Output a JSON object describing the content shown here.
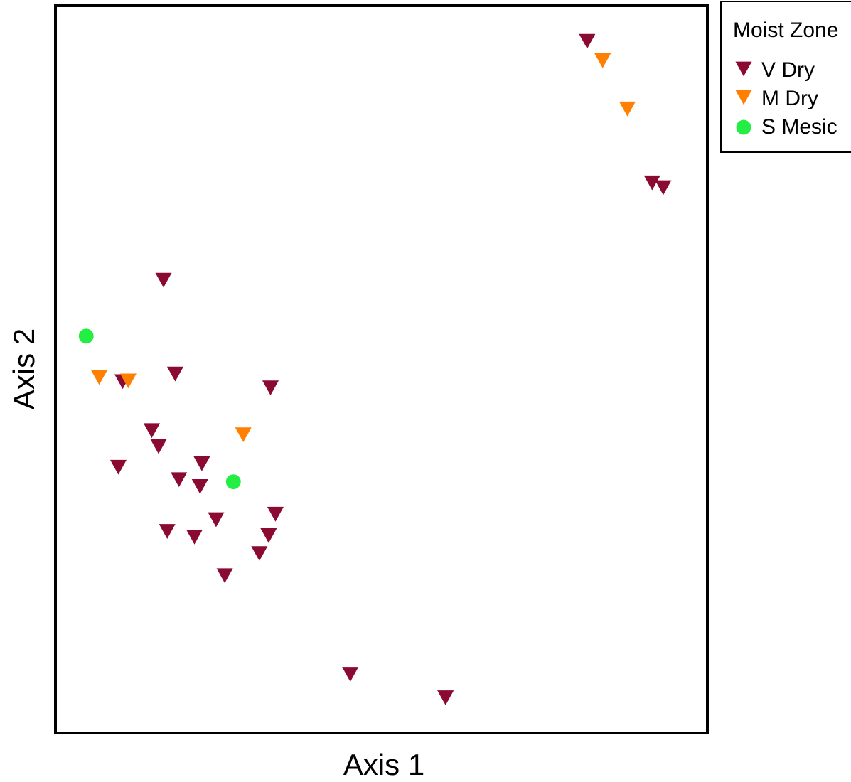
{
  "chart_data": {
    "type": "scatter",
    "title": "",
    "xlabel": "Axis 1",
    "ylabel": "Axis 2",
    "xlim": [
      0,
      100
    ],
    "ylim": [
      0,
      100
    ],
    "grid": false,
    "legend": {
      "title": "Moist Zone",
      "placement": "outside-top-right",
      "entries": [
        {
          "name": "V Dry",
          "marker": "triangle-down",
          "color": "#8B0A32"
        },
        {
          "name": "M Dry",
          "marker": "triangle-down",
          "color": "#FF8000"
        },
        {
          "name": "S Mesic",
          "marker": "circle",
          "color": "#22EE44"
        }
      ]
    },
    "series": [
      {
        "name": "V Dry",
        "marker": "triangle-down",
        "color": "#8B0A32",
        "points": [
          {
            "x": 83.9,
            "y": 97.1
          },
          {
            "x": 94.4,
            "y": 76.6
          },
          {
            "x": 96.2,
            "y": 75.9
          },
          {
            "x": 15.4,
            "y": 62.5
          },
          {
            "x": 17.3,
            "y": 48.9
          },
          {
            "x": 8.8,
            "y": 47.8
          },
          {
            "x": 32.7,
            "y": 46.9
          },
          {
            "x": 13.5,
            "y": 40.7
          },
          {
            "x": 14.6,
            "y": 38.4
          },
          {
            "x": 8.1,
            "y": 35.4
          },
          {
            "x": 21.6,
            "y": 35.9
          },
          {
            "x": 17.9,
            "y": 33.6
          },
          {
            "x": 21.3,
            "y": 32.6
          },
          {
            "x": 33.5,
            "y": 28.6
          },
          {
            "x": 23.9,
            "y": 27.8
          },
          {
            "x": 16.0,
            "y": 26.1
          },
          {
            "x": 20.4,
            "y": 25.3
          },
          {
            "x": 32.4,
            "y": 25.5
          },
          {
            "x": 30.9,
            "y": 22.9
          },
          {
            "x": 25.3,
            "y": 19.7
          },
          {
            "x": 45.6,
            "y": 5.4
          },
          {
            "x": 61.0,
            "y": 2.0
          }
        ]
      },
      {
        "name": "M Dry",
        "marker": "triangle-down",
        "color": "#FF8000",
        "points": [
          {
            "x": 86.4,
            "y": 94.3
          },
          {
            "x": 90.4,
            "y": 87.3
          },
          {
            "x": 5.0,
            "y": 48.4
          },
          {
            "x": 9.7,
            "y": 47.9
          },
          {
            "x": 28.3,
            "y": 40.1
          }
        ]
      },
      {
        "name": "S Mesic",
        "marker": "circle",
        "color": "#22EE44",
        "points": [
          {
            "x": 2.9,
            "y": 54.4
          },
          {
            "x": 26.7,
            "y": 33.3
          }
        ]
      }
    ]
  }
}
